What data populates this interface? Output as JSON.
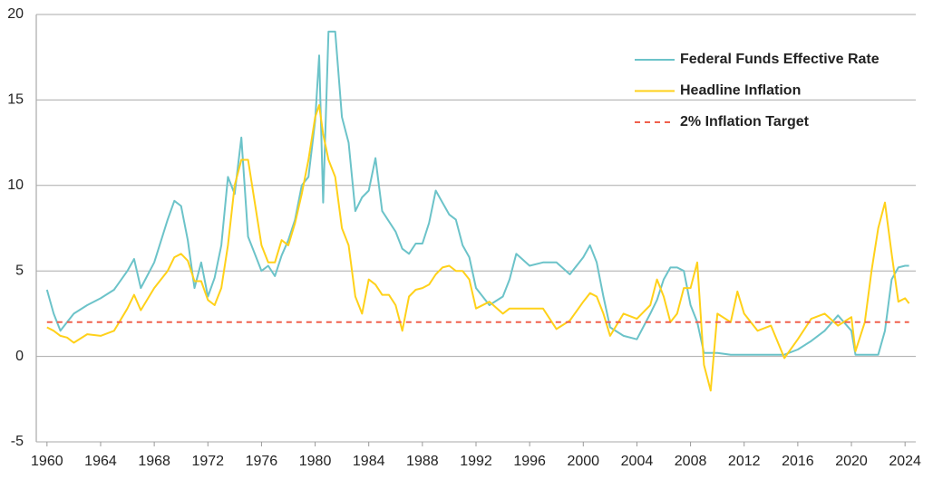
{
  "chart_data": {
    "type": "line",
    "x": [
      1960,
      1960.5,
      1961,
      1961.5,
      1962,
      1963,
      1964,
      1965,
      1966,
      1966.5,
      1967,
      1968,
      1969,
      1969.5,
      1970,
      1970.5,
      1971,
      1971.5,
      1972,
      1972.5,
      1973,
      1973.5,
      1974,
      1974.5,
      1975,
      1975.5,
      1976,
      1976.5,
      1977,
      1977.5,
      1978,
      1978.5,
      1979,
      1979.5,
      1980,
      1980.3,
      1980.6,
      1981,
      1981.5,
      1982,
      1982.5,
      1983,
      1983.5,
      1984,
      1984.5,
      1985,
      1985.5,
      1986,
      1986.5,
      1987,
      1987.5,
      1988,
      1988.5,
      1989,
      1989.5,
      1990,
      1990.5,
      1991,
      1991.5,
      1992,
      1993,
      1994,
      1994.5,
      1995,
      1996,
      1997,
      1998,
      1999,
      2000,
      2000.5,
      2001,
      2001.5,
      2002,
      2003,
      2004,
      2005,
      2005.5,
      2006,
      2006.5,
      2007,
      2007.5,
      2008,
      2008.5,
      2009,
      2009.5,
      2010,
      2011,
      2011.5,
      2012,
      2013,
      2014,
      2015,
      2016,
      2017,
      2018,
      2019,
      2020,
      2020.3,
      2021,
      2021.5,
      2022,
      2022.5,
      2023,
      2023.5,
      2024,
      2024.3
    ],
    "series": [
      {
        "name": "Federal Funds Effective Rate",
        "color": "#6cc3c9",
        "values": [
          3.9,
          2.5,
          1.5,
          2.0,
          2.5,
          3.0,
          3.4,
          3.9,
          5.0,
          5.7,
          4.0,
          5.5,
          8.0,
          9.1,
          8.8,
          6.8,
          4.0,
          5.5,
          3.5,
          4.6,
          6.5,
          10.5,
          9.5,
          12.8,
          7.0,
          6.0,
          5.0,
          5.3,
          4.7,
          5.9,
          6.8,
          8.0,
          10.0,
          10.5,
          13.8,
          17.6,
          9.0,
          19.0,
          19.0,
          14.0,
          12.5,
          8.5,
          9.3,
          9.7,
          11.6,
          8.5,
          7.9,
          7.3,
          6.3,
          6.0,
          6.6,
          6.6,
          7.8,
          9.7,
          9.0,
          8.3,
          8.0,
          6.5,
          5.8,
          4.0,
          3.0,
          3.5,
          4.5,
          6.0,
          5.3,
          5.5,
          5.5,
          4.8,
          5.8,
          6.5,
          5.5,
          3.5,
          1.7,
          1.2,
          1.0,
          2.5,
          3.3,
          4.5,
          5.2,
          5.2,
          5.0,
          3.0,
          2.0,
          0.2,
          0.2,
          0.2,
          0.1,
          0.1,
          0.1,
          0.1,
          0.1,
          0.1,
          0.4,
          0.9,
          1.5,
          2.4,
          1.5,
          0.1,
          0.1,
          0.1,
          0.1,
          1.5,
          4.5,
          5.2,
          5.3,
          5.3
        ]
      },
      {
        "name": "Headline Inflation",
        "color": "#ffd11a",
        "values": [
          1.7,
          1.5,
          1.2,
          1.1,
          0.8,
          1.3,
          1.2,
          1.5,
          2.8,
          3.6,
          2.7,
          4.0,
          5.0,
          5.8,
          6.0,
          5.6,
          4.4,
          4.4,
          3.3,
          3.0,
          4.0,
          6.5,
          10.0,
          11.5,
          11.5,
          9.0,
          6.5,
          5.5,
          5.5,
          6.8,
          6.5,
          7.8,
          9.5,
          11.5,
          14.0,
          14.7,
          13.0,
          11.5,
          10.5,
          7.5,
          6.5,
          3.5,
          2.5,
          4.5,
          4.2,
          3.6,
          3.6,
          3.0,
          1.5,
          3.5,
          3.9,
          4.0,
          4.2,
          4.8,
          5.2,
          5.3,
          5.0,
          5.0,
          4.5,
          2.8,
          3.2,
          2.5,
          2.8,
          2.8,
          2.8,
          2.8,
          1.6,
          2.1,
          3.2,
          3.7,
          3.5,
          2.5,
          1.2,
          2.5,
          2.2,
          3.0,
          4.5,
          3.5,
          2.0,
          2.5,
          4.0,
          4.0,
          5.5,
          -0.5,
          -2.0,
          2.5,
          2.0,
          3.8,
          2.5,
          1.5,
          1.8,
          -0.1,
          1.0,
          2.2,
          2.5,
          1.8,
          2.3,
          0.3,
          2.0,
          5.0,
          7.5,
          9.0,
          6.0,
          3.2,
          3.4,
          3.1
        ]
      },
      {
        "name": "2% Inflation Target",
        "color": "#f0604d",
        "dashed": true,
        "x": [
          1960,
          2024.3
        ],
        "values": [
          2,
          2
        ]
      }
    ],
    "xlim": [
      1959.2,
      2024.8
    ],
    "xticks": [
      1960,
      1964,
      1968,
      1972,
      1976,
      1980,
      1984,
      1988,
      1992,
      1996,
      2000,
      2004,
      2008,
      2012,
      2016,
      2020,
      2024
    ],
    "ylim": [
      -5,
      20
    ],
    "yticks": [
      -5,
      0,
      5,
      10,
      15,
      20
    ],
    "grid": true,
    "legend": "upper right"
  }
}
